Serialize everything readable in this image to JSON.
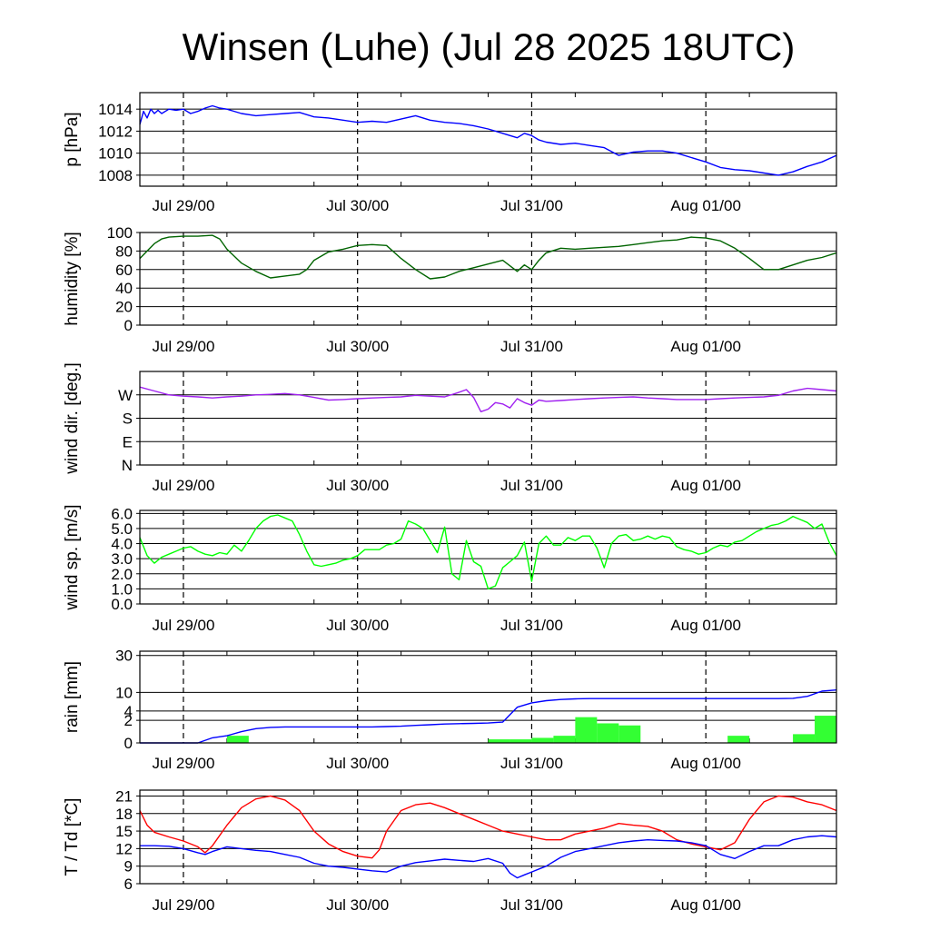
{
  "title": "Winsen (Luhe) (Jul 28 2025 18UTC)",
  "x_ticks": [
    "Jul 29/00",
    "Jul 30/00",
    "Jul 31/00",
    "Aug 01/00"
  ],
  "chart_data": [
    {
      "type": "line",
      "ylabel": "p [hPa]",
      "ylim": [
        1007,
        1015.5
      ],
      "y_ticks": [
        "1008",
        "1010",
        "1012",
        "1014"
      ],
      "y_tick_values": [
        1008,
        1010,
        1012,
        1014
      ],
      "x_hours_range": [
        -6,
        90
      ],
      "series": [
        {
          "color": "#0000ff",
          "x": [
            -6,
            -5.5,
            -5,
            -4.5,
            -4,
            -3.5,
            -3,
            -2,
            -1,
            0,
            1,
            2,
            3,
            4,
            5,
            6,
            8,
            10,
            12,
            14,
            16,
            18,
            20,
            22,
            24,
            26,
            28,
            30,
            32,
            34,
            36,
            38,
            40,
            42,
            44,
            46,
            47,
            48,
            49,
            50,
            52,
            54,
            56,
            58,
            60,
            62,
            64,
            66,
            68,
            70,
            72,
            74,
            76,
            78,
            80,
            82,
            84,
            86,
            88,
            90
          ],
          "y": [
            1012.6,
            1013.8,
            1013.2,
            1014.0,
            1013.6,
            1013.9,
            1013.6,
            1014.0,
            1013.9,
            1014.0,
            1013.6,
            1013.8,
            1014.1,
            1014.3,
            1014.1,
            1014.0,
            1013.6,
            1013.4,
            1013.5,
            1013.6,
            1013.7,
            1013.3,
            1013.2,
            1013.0,
            1012.8,
            1012.9,
            1012.8,
            1013.1,
            1013.4,
            1013.0,
            1012.8,
            1012.7,
            1012.5,
            1012.2,
            1011.8,
            1011.4,
            1011.8,
            1011.6,
            1011.2,
            1011.0,
            1010.8,
            1010.9,
            1010.7,
            1010.5,
            1009.8,
            1010.1,
            1010.2,
            1010.2,
            1010.0,
            1009.6,
            1009.2,
            1008.7,
            1008.5,
            1008.4,
            1008.2,
            1008.0,
            1008.3,
            1008.8,
            1009.2,
            1009.8
          ]
        }
      ]
    },
    {
      "type": "line",
      "ylabel": "humidity [%]",
      "ylim": [
        0,
        100
      ],
      "y_ticks": [
        "0",
        "20",
        "40",
        "60",
        "80",
        "100"
      ],
      "y_tick_values": [
        0,
        20,
        40,
        60,
        80,
        100
      ],
      "x_hours_range": [
        -6,
        90
      ],
      "series": [
        {
          "color": "#006400",
          "x": [
            -6,
            -5,
            -4,
            -3,
            -2,
            0,
            2,
            4,
            5,
            6,
            8,
            10,
            12,
            14,
            16,
            17,
            18,
            20,
            22,
            24,
            26,
            28,
            30,
            32,
            34,
            36,
            37,
            38,
            40,
            42,
            44,
            45,
            46,
            47,
            48,
            49,
            50,
            52,
            54,
            56,
            58,
            60,
            62,
            64,
            66,
            68,
            70,
            72,
            74,
            76,
            78,
            80,
            82,
            84,
            86,
            88,
            90
          ],
          "y": [
            72,
            80,
            88,
            93,
            95,
            96,
            96,
            97,
            93,
            82,
            67,
            58,
            51,
            53,
            55,
            60,
            70,
            79,
            82,
            86,
            87,
            86,
            72,
            60,
            50,
            52,
            55,
            58,
            62,
            66,
            70,
            64,
            58,
            65,
            60,
            70,
            78,
            83,
            82,
            83,
            84,
            85,
            87,
            89,
            91,
            92,
            95,
            94,
            91,
            83,
            72,
            60,
            60,
            65,
            70,
            73,
            78
          ]
        }
      ]
    },
    {
      "type": "line",
      "ylabel": "wind dir. [deg.]",
      "ylim": [
        0,
        360
      ],
      "y_ticks": [
        "N",
        "E",
        "S",
        "W"
      ],
      "y_tick_values": [
        0,
        90,
        180,
        270
      ],
      "x_hours_range": [
        -6,
        90
      ],
      "series": [
        {
          "color": "#a020f0",
          "x": [
            -6,
            -4,
            -2,
            0,
            2,
            4,
            6,
            8,
            10,
            12,
            14,
            16,
            18,
            20,
            22,
            24,
            26,
            28,
            30,
            32,
            34,
            36,
            38,
            39,
            40,
            41,
            42,
            43,
            44,
            45,
            46,
            47,
            48,
            49,
            50,
            52,
            54,
            56,
            58,
            60,
            62,
            64,
            66,
            68,
            70,
            72,
            74,
            76,
            78,
            80,
            82,
            84,
            86,
            88,
            90
          ],
          "y": [
            300,
            285,
            270,
            265,
            262,
            258,
            262,
            265,
            270,
            272,
            275,
            270,
            260,
            250,
            252,
            255,
            258,
            260,
            262,
            268,
            265,
            262,
            280,
            290,
            260,
            205,
            215,
            240,
            235,
            220,
            255,
            240,
            230,
            250,
            245,
            248,
            252,
            255,
            258,
            260,
            262,
            258,
            255,
            252,
            252,
            252,
            255,
            258,
            260,
            262,
            268,
            285,
            295,
            290,
            285
          ]
        }
      ]
    },
    {
      "type": "line",
      "ylabel": "wind sp. [m/s]",
      "ylim": [
        0,
        6.2
      ],
      "y_ticks": [
        "0.0",
        "1.0",
        "2.0",
        "3.0",
        "4.0",
        "5.0",
        "6.0"
      ],
      "y_tick_values": [
        0,
        1,
        2,
        3,
        4,
        5,
        6
      ],
      "x_hours_range": [
        -6,
        90
      ],
      "series": [
        {
          "color": "#00ff00",
          "x": [
            -6,
            -5,
            -4,
            -3,
            -2,
            -1,
            0,
            1,
            2,
            3,
            4,
            5,
            6,
            7,
            8,
            9,
            10,
            11,
            12,
            13,
            14,
            15,
            16,
            17,
            18,
            19,
            20,
            21,
            22,
            23,
            24,
            25,
            26,
            27,
            28,
            29,
            30,
            31,
            32,
            33,
            34,
            35,
            36,
            37,
            38,
            39,
            40,
            41,
            42,
            43,
            44,
            45,
            46,
            47,
            48,
            49,
            50,
            51,
            52,
            53,
            54,
            55,
            56,
            57,
            58,
            59,
            60,
            61,
            62,
            63,
            64,
            65,
            66,
            67,
            68,
            69,
            70,
            71,
            72,
            73,
            74,
            75,
            76,
            77,
            78,
            79,
            80,
            81,
            82,
            83,
            84,
            85,
            86,
            87,
            88,
            89,
            90
          ],
          "y": [
            4.4,
            3.2,
            2.7,
            3.1,
            3.3,
            3.5,
            3.7,
            3.8,
            3.5,
            3.3,
            3.2,
            3.4,
            3.3,
            3.9,
            3.5,
            4.2,
            5.0,
            5.5,
            5.8,
            5.9,
            5.7,
            5.5,
            4.6,
            3.5,
            2.6,
            2.5,
            2.6,
            2.7,
            2.9,
            3.0,
            3.2,
            3.6,
            3.6,
            3.6,
            3.9,
            4.0,
            4.3,
            5.5,
            5.3,
            5.0,
            4.2,
            3.4,
            5.1,
            2.0,
            1.6,
            4.2,
            2.8,
            2.5,
            1.0,
            1.2,
            2.4,
            2.8,
            3.2,
            4.1,
            1.5,
            4.0,
            4.5,
            3.9,
            3.9,
            4.4,
            4.2,
            4.5,
            4.5,
            3.7,
            2.4,
            4.0,
            4.5,
            4.6,
            4.2,
            4.3,
            4.5,
            4.3,
            4.5,
            4.4,
            3.8,
            3.6,
            3.5,
            3.3,
            3.4,
            3.7,
            3.9,
            3.8,
            4.1,
            4.2,
            4.5,
            4.8,
            5.0,
            5.2,
            5.3,
            5.5,
            5.8,
            5.6,
            5.4,
            5.0,
            5.3,
            4.1,
            3.2
          ]
        }
      ]
    },
    {
      "type": "bar",
      "ylabel": "rain [mm]",
      "scale": "sqrt",
      "ylim": [
        0,
        33
      ],
      "y_ticks": [
        "0",
        "2",
        "4",
        "10",
        "30"
      ],
      "y_tick_values": [
        0,
        2,
        4,
        10,
        30
      ],
      "x_hours_range": [
        -6,
        90
      ],
      "bars": {
        "color": "#33ff33",
        "x_start": [
          -2,
          4,
          6,
          12,
          27,
          30,
          33,
          42,
          45,
          48,
          51,
          54,
          57,
          60,
          75,
          78,
          81,
          84,
          87
        ],
        "x_end": [
          0,
          6,
          9,
          15,
          30,
          33,
          36,
          45,
          48,
          51,
          54,
          57,
          60,
          63,
          78,
          81,
          84,
          87,
          90
        ],
        "values": [
          0,
          0,
          0.2,
          0,
          0,
          0,
          0,
          0.05,
          0.05,
          0.1,
          0.2,
          2.6,
          1.5,
          1.2,
          0.2,
          0,
          0,
          0.3,
          2.9
        ]
      },
      "series": [
        {
          "name": "",
          "color": "#0000ff",
          "x": [
            -6,
            0,
            2,
            4,
            6,
            8,
            10,
            12,
            14,
            16,
            18,
            20,
            22,
            24,
            26,
            28,
            30,
            32,
            34,
            36,
            38,
            40,
            42,
            44,
            46,
            48,
            50,
            52,
            54,
            56,
            58,
            60,
            62,
            64,
            66,
            68,
            70,
            72,
            74,
            76,
            78,
            80,
            82,
            84,
            86,
            88,
            90
          ],
          "y": [
            0,
            0,
            0,
            0.1,
            0.2,
            0.5,
            0.8,
            0.95,
            1.0,
            1.0,
            1.0,
            1.0,
            1.0,
            1.0,
            1.0,
            1.05,
            1.1,
            1.2,
            1.3,
            1.4,
            1.45,
            1.5,
            1.55,
            1.7,
            5.0,
            6.3,
            7.0,
            7.4,
            7.6,
            7.7,
            7.7,
            7.7,
            7.7,
            7.7,
            7.7,
            7.7,
            7.7,
            7.7,
            7.7,
            7.7,
            7.7,
            7.7,
            7.7,
            7.8,
            8.5,
            10.5,
            11.0
          ]
        }
      ]
    },
    {
      "type": "line",
      "ylabel": "T / Td [*C]",
      "ylim": [
        6,
        22
      ],
      "y_ticks": [
        "6",
        "9",
        "12",
        "15",
        "18",
        "21"
      ],
      "y_tick_values": [
        6,
        9,
        12,
        15,
        18,
        21
      ],
      "x_hours_range": [
        -6,
        90
      ],
      "series": [
        {
          "color": "#ff0000",
          "x": [
            -6,
            -5,
            -4,
            -2,
            0,
            2,
            3,
            4,
            6,
            8,
            10,
            12,
            14,
            16,
            18,
            20,
            22,
            24,
            26,
            27,
            28,
            30,
            32,
            34,
            36,
            38,
            40,
            42,
            44,
            46,
            48,
            50,
            52,
            54,
            56,
            58,
            60,
            62,
            64,
            66,
            68,
            70,
            72,
            74,
            76,
            78,
            80,
            82,
            84,
            86,
            88,
            90
          ],
          "y": [
            18.5,
            16.0,
            14.8,
            14.0,
            13.3,
            12.3,
            11.3,
            12.5,
            16.0,
            19.0,
            20.5,
            21.0,
            20.3,
            18.5,
            15.0,
            12.8,
            11.5,
            10.7,
            10.4,
            11.8,
            15.0,
            18.5,
            19.5,
            19.8,
            19.0,
            18.0,
            17.0,
            16.0,
            15.0,
            14.5,
            14.0,
            13.5,
            13.5,
            14.5,
            15.0,
            15.5,
            16.3,
            16.0,
            15.8,
            15.0,
            13.5,
            12.8,
            12.3,
            11.8,
            13.0,
            17.0,
            20.0,
            21.0,
            20.8,
            20.0,
            19.5,
            18.5
          ]
        },
        {
          "color": "#0000ff",
          "x": [
            -6,
            -4,
            -2,
            0,
            2,
            3,
            4,
            6,
            8,
            10,
            12,
            14,
            16,
            18,
            20,
            22,
            24,
            26,
            28,
            30,
            32,
            34,
            36,
            38,
            40,
            42,
            44,
            45,
            46,
            47,
            48,
            50,
            52,
            54,
            56,
            58,
            60,
            62,
            64,
            66,
            68,
            70,
            72,
            74,
            76,
            78,
            80,
            82,
            84,
            86,
            88,
            90
          ],
          "y": [
            12.5,
            12.5,
            12.4,
            12.0,
            11.3,
            11.0,
            11.5,
            12.3,
            12.0,
            11.7,
            11.5,
            11.0,
            10.5,
            9.5,
            9.0,
            8.8,
            8.5,
            8.2,
            8.0,
            9.0,
            9.6,
            9.9,
            10.2,
            10.0,
            9.8,
            10.3,
            9.5,
            7.8,
            7.0,
            7.5,
            8.0,
            9.0,
            10.5,
            11.5,
            12.0,
            12.5,
            13.0,
            13.3,
            13.5,
            13.4,
            13.3,
            13.0,
            12.5,
            11.0,
            10.3,
            11.5,
            12.5,
            12.5,
            13.5,
            14.0,
            14.2,
            14.0
          ]
        }
      ]
    }
  ]
}
